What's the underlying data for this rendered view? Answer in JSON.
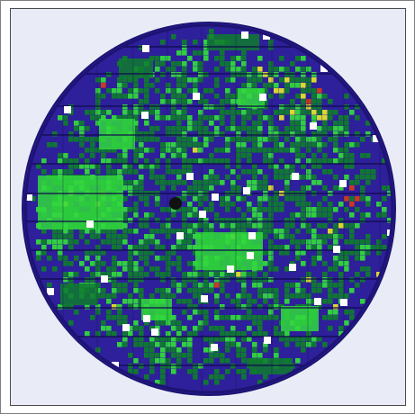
{
  "image": {
    "colors": {
      "background": "#e9ecf7",
      "wafer_base": "#2e1f9a",
      "wafer_rim": "#4a3ad0",
      "green_dark": "#0f7b2e",
      "green_bright": "#31d83c",
      "yellow": "#e3e02c",
      "red": "#d43a1a",
      "gridline": "#0f0a4a",
      "marker": "#ffffff",
      "dark_spot": "#111111"
    }
  }
}
